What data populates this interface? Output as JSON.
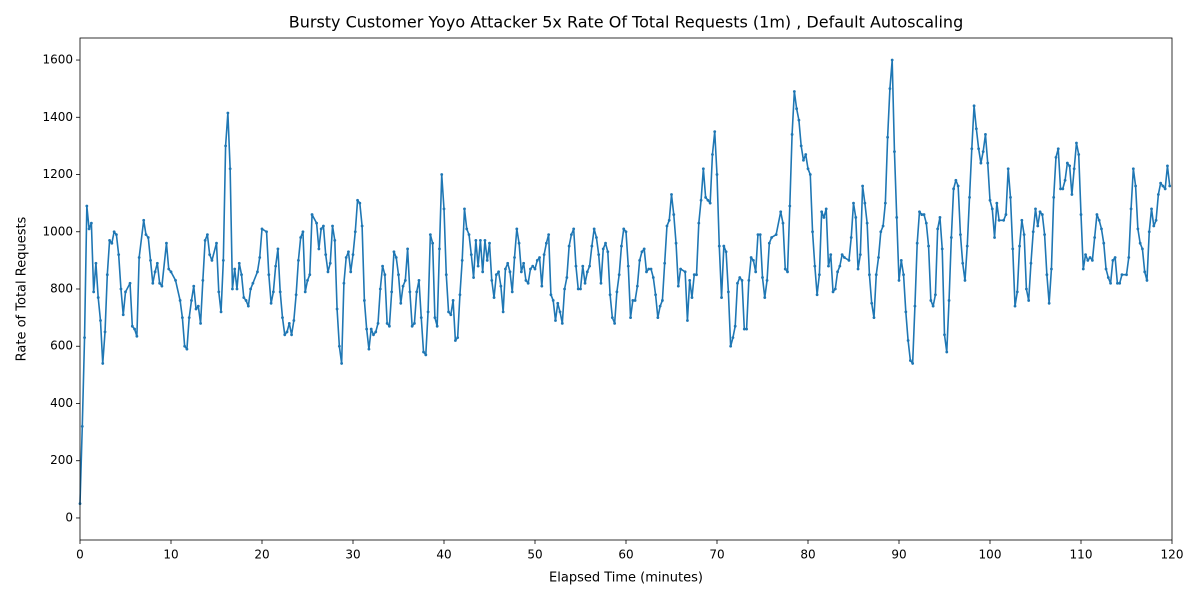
{
  "chart_data": {
    "type": "line",
    "title": "Bursty Customer Yoyo Attacker 5x Rate Of Total Requests (1m) , Default Autoscaling",
    "x_label": "Elapsed Time (minutes)",
    "y_label": "Rate of Total Requests",
    "xlim": [
      0,
      120
    ],
    "xticks": [
      0,
      10,
      20,
      30,
      40,
      50,
      60,
      70,
      80,
      90,
      100,
      110,
      120
    ],
    "ylim": [
      -77,
      1677
    ],
    "yticks": [
      0,
      200,
      400,
      600,
      800,
      1000,
      1200,
      1400,
      1600
    ],
    "grid": false,
    "x": [
      0,
      0.25,
      0.5,
      0.75,
      1,
      1.25,
      1.5,
      1.75,
      2,
      2.25,
      2.5,
      2.75,
      3,
      3.25,
      3.5,
      3.75,
      4,
      4.25,
      4.5,
      4.75,
      5,
      5.5,
      5.75,
      6,
      6.25,
      6.5,
      7,
      7.25,
      7.5,
      7.75,
      8,
      8.25,
      8.5,
      8.75,
      9,
      9.5,
      9.75,
      10,
      10.5,
      11,
      11.25,
      11.5,
      11.75,
      12,
      12.25,
      12.5,
      12.75,
      13,
      13.25,
      13.5,
      13.75,
      14,
      14.25,
      14.5,
      15,
      15.25,
      15.5,
      15.75,
      16,
      16.25,
      16.5,
      16.75,
      17,
      17.25,
      17.5,
      17.75,
      18,
      18.25,
      18.5,
      18.75,
      19,
      19.5,
      19.75,
      20,
      20.5,
      20.75,
      21,
      21.25,
      21.5,
      21.75,
      22,
      22.25,
      22.5,
      22.75,
      23,
      23.25,
      23.5,
      23.75,
      24,
      24.25,
      24.5,
      24.75,
      25,
      25.25,
      25.5,
      26,
      26.25,
      26.5,
      26.75,
      27,
      27.25,
      27.5,
      27.75,
      28,
      28.25,
      28.5,
      28.75,
      29,
      29.25,
      29.5,
      29.75,
      30,
      30.25,
      30.5,
      30.75,
      31,
      31.25,
      31.5,
      31.75,
      32,
      32.25,
      32.5,
      32.75,
      33,
      33.25,
      33.5,
      33.75,
      34,
      34.25,
      34.5,
      34.75,
      35,
      35.25,
      35.5,
      35.75,
      36,
      36.25,
      36.5,
      36.75,
      37,
      37.25,
      37.5,
      37.75,
      38,
      38.25,
      38.5,
      38.75,
      39,
      39.25,
      39.5,
      39.75,
      40,
      40.25,
      40.5,
      40.75,
      41,
      41.25,
      41.5,
      41.75,
      42,
      42.25,
      42.5,
      42.75,
      43,
      43.25,
      43.5,
      43.75,
      44,
      44.25,
      44.5,
      44.75,
      45,
      45.25,
      45.5,
      45.75,
      46,
      46.25,
      46.5,
      46.75,
      47,
      47.25,
      47.5,
      47.75,
      48,
      48.25,
      48.5,
      48.75,
      49,
      49.25,
      49.5,
      49.75,
      50,
      50.25,
      50.5,
      50.75,
      51,
      51.25,
      51.5,
      51.75,
      52,
      52.25,
      52.5,
      52.75,
      53,
      53.25,
      53.5,
      53.75,
      54,
      54.25,
      54.5,
      54.75,
      55,
      55.25,
      55.5,
      55.75,
      56,
      56.25,
      56.5,
      56.75,
      57,
      57.25,
      57.5,
      57.75,
      58,
      58.25,
      58.5,
      58.75,
      59,
      59.25,
      59.5,
      59.75,
      60,
      60.25,
      60.5,
      60.75,
      61,
      61.25,
      61.5,
      61.75,
      62,
      62.25,
      62.5,
      62.75,
      63,
      63.25,
      63.5,
      63.75,
      64,
      64.25,
      64.5,
      64.75,
      65,
      65.25,
      65.5,
      65.75,
      66,
      66.5,
      66.75,
      67,
      67.25,
      67.5,
      67.75,
      68,
      68.25,
      68.5,
      68.75,
      69,
      69.25,
      69.5,
      69.75,
      70,
      70.25,
      70.5,
      70.75,
      71,
      71.25,
      71.5,
      71.75,
      72,
      72.25,
      72.5,
      72.75,
      73,
      73.25,
      73.5,
      73.75,
      74,
      74.25,
      74.5,
      74.75,
      75,
      75.25,
      75.5,
      75.75,
      76,
      76.5,
      77,
      77.25,
      77.5,
      77.75,
      78,
      78.25,
      78.5,
      78.75,
      79,
      79.25,
      79.5,
      79.75,
      80,
      80.25,
      80.5,
      80.75,
      81,
      81.25,
      81.5,
      81.75,
      82,
      82.25,
      82.5,
      82.75,
      83,
      83.25,
      83.5,
      83.75,
      84,
      84.5,
      84.75,
      85,
      85.25,
      85.5,
      85.75,
      86,
      86.25,
      86.5,
      86.75,
      87,
      87.25,
      87.5,
      87.75,
      88,
      88.25,
      88.5,
      88.75,
      89,
      89.25,
      89.5,
      89.75,
      90,
      90.25,
      90.5,
      90.75,
      91,
      91.25,
      91.5,
      91.75,
      92,
      92.25,
      92.5,
      92.75,
      93,
      93.25,
      93.5,
      93.75,
      94,
      94.25,
      94.5,
      94.75,
      95,
      95.25,
      95.5,
      95.75,
      96,
      96.25,
      96.5,
      96.75,
      97,
      97.25,
      97.5,
      97.75,
      98,
      98.25,
      98.5,
      98.75,
      99,
      99.25,
      99.5,
      99.75,
      100,
      100.25,
      100.5,
      100.75,
      101,
      101.5,
      101.75,
      102,
      102.25,
      102.5,
      102.75,
      103,
      103.25,
      103.5,
      103.75,
      104,
      104.25,
      104.5,
      104.75,
      105,
      105.25,
      105.5,
      105.75,
      106,
      106.25,
      106.5,
      106.75,
      107,
      107.25,
      107.5,
      107.75,
      108,
      108.25,
      108.5,
      108.75,
      109,
      109.25,
      109.5,
      109.75,
      110,
      110.25,
      110.5,
      110.75,
      111,
      111.25,
      111.5,
      111.75,
      112,
      112.25,
      112.5,
      112.75,
      113,
      113.25,
      113.5,
      113.75,
      114,
      114.25,
      114.5,
      115,
      115.25,
      115.5,
      115.75,
      116,
      116.25,
      116.5,
      116.75,
      117,
      117.25,
      117.5,
      117.75,
      118,
      118.25,
      118.5,
      118.75,
      119,
      119.25,
      119.5,
      119.75
    ],
    "series": [
      {
        "color": "#1f77b4",
        "values": [
          50,
          320,
          630,
          1090,
          1010,
          1030,
          790,
          890,
          770,
          690,
          540,
          650,
          850,
          970,
          960,
          1000,
          990,
          920,
          800,
          710,
          790,
          820,
          670,
          660,
          635,
          910,
          1040,
          990,
          980,
          900,
          820,
          860,
          890,
          820,
          810,
          960,
          870,
          860,
          830,
          760,
          700,
          600,
          590,
          700,
          760,
          810,
          730,
          740,
          680,
          830,
          970,
          990,
          920,
          900,
          960,
          790,
          720,
          900,
          1300,
          1415,
          1220,
          800,
          870,
          800,
          890,
          850,
          770,
          760,
          740,
          800,
          820,
          860,
          910,
          1010,
          1000,
          850,
          750,
          790,
          880,
          940,
          790,
          700,
          640,
          650,
          680,
          640,
          690,
          780,
          900,
          980,
          1000,
          790,
          830,
          850,
          1060,
          1030,
          940,
          1010,
          1020,
          920,
          860,
          890,
          1020,
          970,
          730,
          600,
          540,
          820,
          910,
          930,
          860,
          920,
          1000,
          1110,
          1100,
          1020,
          760,
          660,
          590,
          660,
          640,
          650,
          680,
          800,
          880,
          850,
          680,
          670,
          790,
          930,
          910,
          850,
          750,
          810,
          830,
          940,
          790,
          670,
          680,
          790,
          830,
          700,
          580,
          570,
          720,
          990,
          960,
          700,
          670,
          940,
          1200,
          1080,
          850,
          720,
          710,
          760,
          620,
          630,
          780,
          900,
          1080,
          1010,
          990,
          920,
          840,
          970,
          880,
          970,
          860,
          970,
          900,
          960,
          830,
          770,
          850,
          860,
          810,
          720,
          870,
          890,
          860,
          790,
          910,
          1010,
          960,
          860,
          890,
          830,
          820,
          870,
          880,
          870,
          900,
          910,
          810,
          920,
          960,
          990,
          780,
          760,
          690,
          750,
          720,
          680,
          800,
          840,
          950,
          990,
          1010,
          880,
          800,
          800,
          880,
          820,
          860,
          880,
          950,
          1010,
          980,
          920,
          820,
          940,
          960,
          930,
          780,
          700,
          680,
          790,
          850,
          950,
          1010,
          1000,
          880,
          700,
          760,
          760,
          810,
          900,
          930,
          940,
          860,
          870,
          870,
          840,
          780,
          700,
          740,
          760,
          890,
          1020,
          1040,
          1130,
          1060,
          960,
          810,
          870,
          860,
          690,
          830,
          770,
          850,
          850,
          1030,
          1110,
          1220,
          1120,
          1110,
          1100,
          1270,
          1350,
          1200,
          950,
          770,
          950,
          930,
          790,
          600,
          630,
          670,
          820,
          840,
          830,
          660,
          660,
          830,
          910,
          900,
          860,
          990,
          990,
          840,
          770,
          830,
          960,
          980,
          990,
          1070,
          1030,
          870,
          860,
          1090,
          1340,
          1490,
          1430,
          1390,
          1300,
          1250,
          1270,
          1220,
          1200,
          1000,
          880,
          780,
          850,
          1070,
          1050,
          1080,
          880,
          920,
          790,
          800,
          860,
          880,
          920,
          910,
          900,
          980,
          1100,
          1050,
          870,
          920,
          1160,
          1100,
          1030,
          850,
          750,
          700,
          850,
          910,
          1000,
          1020,
          1100,
          1330,
          1500,
          1600,
          1280,
          1050,
          830,
          900,
          850,
          720,
          620,
          550,
          540,
          740,
          960,
          1070,
          1060,
          1060,
          1030,
          950,
          760,
          740,
          780,
          1010,
          1050,
          940,
          640,
          580,
          760,
          980,
          1150,
          1180,
          1160,
          990,
          890,
          830,
          950,
          1120,
          1290,
          1440,
          1360,
          1290,
          1240,
          1280,
          1340,
          1240,
          1110,
          1080,
          980,
          1100,
          1040,
          1040,
          1060,
          1220,
          1120,
          940,
          740,
          790,
          950,
          1040,
          990,
          800,
          760,
          890,
          1000,
          1080,
          1020,
          1070,
          1060,
          990,
          850,
          750,
          870,
          1120,
          1260,
          1290,
          1150,
          1150,
          1180,
          1240,
          1230,
          1130,
          1220,
          1310,
          1270,
          1060,
          870,
          920,
          900,
          910,
          900,
          980,
          1060,
          1040,
          1010,
          960,
          870,
          840,
          820,
          900,
          910,
          820,
          820,
          850,
          850,
          910,
          1080,
          1220,
          1160,
          1010,
          960,
          940,
          860,
          830,
          1000,
          1080,
          1020,
          1040,
          1130,
          1170,
          1160,
          1150,
          1230,
          1160
        ]
      }
    ]
  }
}
